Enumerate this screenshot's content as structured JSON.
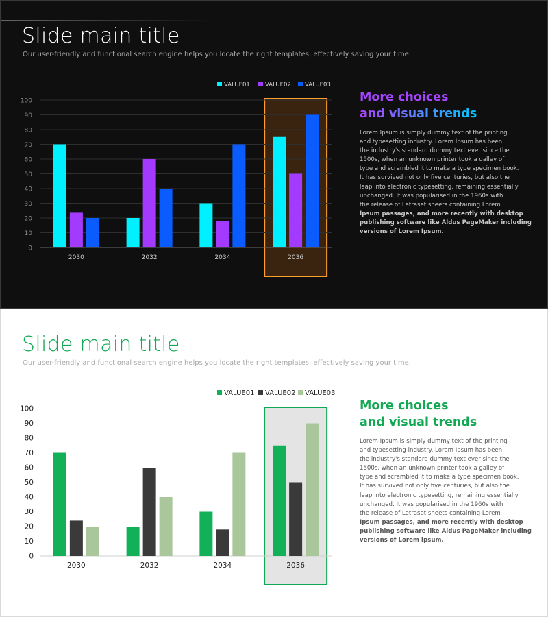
{
  "slides": [
    {
      "id": "dark",
      "title": "Slide main title",
      "subtitle": "Our user-friendly and functional search engine helps you locate the right templates, effectively saving your time.",
      "heading_line1": "More choices",
      "heading_line2": "and visual trends",
      "body_lines": [
        "Lorem Ipsum is simply dummy text of the printing",
        "and typesetting industry. Lorem Ipsum has been",
        "the industry's standard dummy text ever since the",
        "1500s, when an unknown printer took a galley of",
        "type and scrambled it to make a type specimen book.",
        "It has survived not only five centuries, but also the",
        "leap into electronic typesetting, remaining essentially",
        "unchanged. It was popularised in the 1960s with",
        "the release of Letraset sheets containing Lorem"
      ],
      "body_bold_lines": [
        "Ipsum passages, and more recently with desktop",
        "publishing software like Aldus PageMaker including",
        "versions of Lorem Ipsum."
      ],
      "colors": {
        "series": [
          "#00f0ff",
          "#a33bff",
          "#0a5cff"
        ],
        "text": "#d0d0d0",
        "axis": "#6a6a6a",
        "grid": "#2f2f2f",
        "highlight_fill": "#3a2410",
        "highlight_stroke": "#ff9f2e"
      }
    },
    {
      "id": "light",
      "title": "Slide main title",
      "subtitle": "Our user-friendly and functional search engine helps you locate the right templates, effectively saving your time.",
      "heading_line1": "More choices",
      "heading_line2": "and visual trends",
      "body_lines": [
        "Lorem Ipsum is simply dummy text of the printing",
        "and typesetting industry. Lorem Ipsum has been",
        "the industry's standard dummy text ever since the",
        "1500s, when an unknown printer took a galley of",
        "type and scrambled it to make a type specimen book.",
        "It has survived not only five centuries, but also the",
        "leap into electronic typesetting, remaining essentially",
        "unchanged. It was popularised in the 1960s with",
        "the release of Letraset sheets containing Lorem"
      ],
      "body_bold_lines": [
        "Ipsum passages, and more recently with desktop",
        "publishing software like Aldus PageMaker including",
        "versions of Lorem Ipsum."
      ],
      "colors": {
        "series": [
          "#12b057",
          "#3a3a3a",
          "#a9c79b"
        ],
        "text": "#222222",
        "axis": "#cfcfcf",
        "grid": null,
        "highlight_fill": "#e4e4e4",
        "highlight_stroke": "#12a854"
      }
    }
  ],
  "chart_data": [
    {
      "type": "bar",
      "categories": [
        "2030",
        "2032",
        "2034",
        "2036"
      ],
      "series": [
        {
          "name": "VALUE01",
          "values": [
            70,
            20,
            30,
            75
          ]
        },
        {
          "name": "VALUE02",
          "values": [
            24,
            60,
            18,
            50
          ]
        },
        {
          "name": "VALUE03",
          "values": [
            20,
            40,
            70,
            90
          ]
        }
      ],
      "yticks": [
        0,
        10,
        20,
        30,
        40,
        50,
        60,
        70,
        80,
        90,
        100
      ],
      "ylim": [
        0,
        100
      ],
      "grid": true,
      "legend": "top-right",
      "highlight_category": "2036"
    },
    {
      "type": "bar",
      "categories": [
        "2030",
        "2032",
        "2034",
        "2036"
      ],
      "series": [
        {
          "name": "VALUE01",
          "values": [
            70,
            20,
            30,
            75
          ]
        },
        {
          "name": "VALUE02",
          "values": [
            24,
            60,
            18,
            50
          ]
        },
        {
          "name": "VALUE03",
          "values": [
            20,
            40,
            70,
            90
          ]
        }
      ],
      "yticks": [
        0,
        10,
        20,
        30,
        40,
        50,
        60,
        70,
        80,
        90,
        100
      ],
      "ylim": [
        0,
        100
      ],
      "grid": false,
      "legend": "top-right",
      "highlight_category": "2036"
    }
  ]
}
